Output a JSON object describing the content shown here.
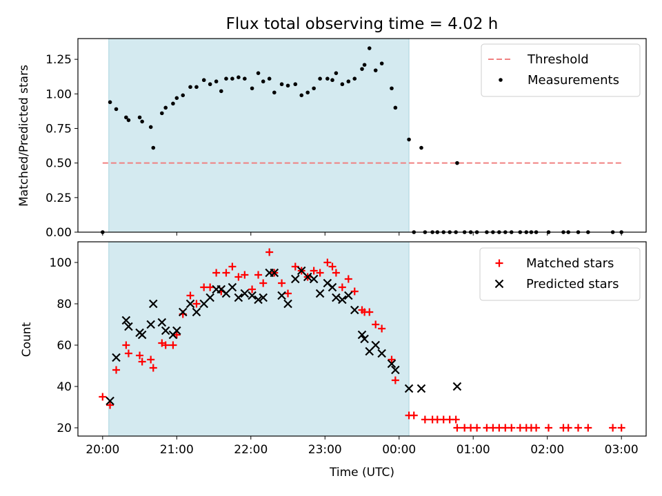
{
  "chart_data": [
    {
      "type": "scatter",
      "title": "Flux total observing time = 4.02 h",
      "xlabel": "",
      "ylabel": "Matched/Predicted stars",
      "ylim": [
        0,
        1.4
      ],
      "yticks": [
        "0.00",
        "0.25",
        "0.50",
        "0.75",
        "1.00",
        "1.25"
      ],
      "ytick_values": [
        0,
        0.25,
        0.5,
        0.75,
        1.0,
        1.25
      ],
      "shaded_span": [
        "20:05",
        "00:08"
      ],
      "threshold": {
        "name": "Threshold",
        "value": 0.5,
        "x_range": [
          "20:00",
          "03:00"
        ],
        "color": "#f08080"
      },
      "legend_position": "upper right",
      "series": [
        {
          "name": "Measurements",
          "marker": "dot",
          "color": "#000000",
          "points": [
            [
              "20:00",
              0.0
            ],
            [
              "20:06",
              0.94
            ],
            [
              "20:11",
              0.89
            ],
            [
              "20:19",
              0.83
            ],
            [
              "20:21",
              0.81
            ],
            [
              "20:30",
              0.83
            ],
            [
              "20:32",
              0.8
            ],
            [
              "20:39",
              0.76
            ],
            [
              "20:41",
              0.61
            ],
            [
              "20:48",
              0.86
            ],
            [
              "20:51",
              0.9
            ],
            [
              "20:57",
              0.93
            ],
            [
              "21:00",
              0.97
            ],
            [
              "21:05",
              0.99
            ],
            [
              "21:11",
              1.05
            ],
            [
              "21:16",
              1.05
            ],
            [
              "21:22",
              1.1
            ],
            [
              "21:27",
              1.07
            ],
            [
              "21:32",
              1.09
            ],
            [
              "21:36",
              1.02
            ],
            [
              "21:40",
              1.11
            ],
            [
              "21:45",
              1.11
            ],
            [
              "21:50",
              1.12
            ],
            [
              "21:55",
              1.11
            ],
            [
              "22:01",
              1.04
            ],
            [
              "22:06",
              1.15
            ],
            [
              "22:10",
              1.09
            ],
            [
              "22:15",
              1.11
            ],
            [
              "22:19",
              1.01
            ],
            [
              "22:25",
              1.07
            ],
            [
              "22:30",
              1.06
            ],
            [
              "22:36",
              1.07
            ],
            [
              "22:41",
              0.99
            ],
            [
              "22:46",
              1.01
            ],
            [
              "22:51",
              1.04
            ],
            [
              "22:56",
              1.11
            ],
            [
              "23:02",
              1.11
            ],
            [
              "23:06",
              1.1
            ],
            [
              "23:09",
              1.15
            ],
            [
              "23:14",
              1.07
            ],
            [
              "23:19",
              1.09
            ],
            [
              "23:24",
              1.11
            ],
            [
              "23:30",
              1.18
            ],
            [
              "23:32",
              1.21
            ],
            [
              "23:36",
              1.33
            ],
            [
              "23:41",
              1.17
            ],
            [
              "23:46",
              1.22
            ],
            [
              "23:54",
              1.04
            ],
            [
              "23:57",
              0.9
            ],
            [
              "00:08",
              0.67
            ],
            [
              "00:18",
              0.61
            ],
            [
              "00:12",
              0.0
            ],
            [
              "00:21",
              0.0
            ],
            [
              "00:27",
              0.0
            ],
            [
              "00:31",
              0.0
            ],
            [
              "00:36",
              0.0
            ],
            [
              "00:41",
              0.0
            ],
            [
              "00:46",
              0.0
            ],
            [
              "00:47",
              0.5
            ],
            [
              "00:53",
              0.0
            ],
            [
              "00:58",
              0.0
            ],
            [
              "01:03",
              0.0
            ],
            [
              "01:11",
              0.0
            ],
            [
              "01:16",
              0.0
            ],
            [
              "01:21",
              0.0
            ],
            [
              "01:26",
              0.0
            ],
            [
              "01:31",
              0.0
            ],
            [
              "01:38",
              0.0
            ],
            [
              "01:43",
              0.0
            ],
            [
              "01:47",
              0.0
            ],
            [
              "01:51",
              0.0
            ],
            [
              "02:01",
              0.0
            ],
            [
              "02:13",
              0.0
            ],
            [
              "02:17",
              0.0
            ],
            [
              "02:25",
              0.0
            ],
            [
              "02:33",
              0.0
            ],
            [
              "02:53",
              0.0
            ],
            [
              "03:00",
              0.0
            ]
          ]
        }
      ]
    },
    {
      "type": "scatter",
      "title": "",
      "xlabel": "Time (UTC)",
      "ylabel": "Count",
      "ylim": [
        16,
        110
      ],
      "yticks": [
        "20",
        "40",
        "60",
        "80",
        "100"
      ],
      "ytick_values": [
        20,
        40,
        60,
        80,
        100
      ],
      "xticks": [
        "20:00",
        "21:00",
        "22:00",
        "23:00",
        "00:00",
        "01:00",
        "02:00",
        "03:00"
      ],
      "xlim": [
        "19:40",
        "03:20"
      ],
      "shaded_span": [
        "20:05",
        "00:08"
      ],
      "legend_position": "upper right",
      "series": [
        {
          "name": "Matched stars",
          "marker": "plus",
          "color": "#ff0000",
          "points": [
            [
              "20:00",
              35
            ],
            [
              "20:06",
              31
            ],
            [
              "20:11",
              48
            ],
            [
              "20:19",
              60
            ],
            [
              "20:21",
              56
            ],
            [
              "20:30",
              55
            ],
            [
              "20:32",
              52
            ],
            [
              "20:39",
              53
            ],
            [
              "20:41",
              49
            ],
            [
              "20:48",
              61
            ],
            [
              "20:51",
              60
            ],
            [
              "20:57",
              60
            ],
            [
              "21:00",
              65
            ],
            [
              "21:05",
              75
            ],
            [
              "21:11",
              84
            ],
            [
              "21:16",
              80
            ],
            [
              "21:22",
              88
            ],
            [
              "21:27",
              88
            ],
            [
              "21:32",
              95
            ],
            [
              "21:36",
              86
            ],
            [
              "21:40",
              95
            ],
            [
              "21:45",
              98
            ],
            [
              "21:50",
              93
            ],
            [
              "21:55",
              94
            ],
            [
              "22:01",
              87
            ],
            [
              "22:06",
              94
            ],
            [
              "22:10",
              90
            ],
            [
              "22:15",
              105
            ],
            [
              "22:19",
              95
            ],
            [
              "22:25",
              90
            ],
            [
              "22:30",
              85
            ],
            [
              "22:36",
              98
            ],
            [
              "22:41",
              96
            ],
            [
              "22:46",
              93
            ],
            [
              "22:51",
              96
            ],
            [
              "22:56",
              95
            ],
            [
              "23:02",
              100
            ],
            [
              "23:06",
              98
            ],
            [
              "23:09",
              95
            ],
            [
              "23:14",
              88
            ],
            [
              "23:19",
              92
            ],
            [
              "23:24",
              86
            ],
            [
              "23:30",
              77
            ],
            [
              "23:32",
              76
            ],
            [
              "23:36",
              76
            ],
            [
              "23:41",
              70
            ],
            [
              "23:46",
              68
            ],
            [
              "23:54",
              53
            ],
            [
              "23:57",
              43
            ],
            [
              "00:08",
              26
            ],
            [
              "00:12",
              26
            ],
            [
              "00:21",
              24
            ],
            [
              "00:27",
              24
            ],
            [
              "00:31",
              24
            ],
            [
              "00:36",
              24
            ],
            [
              "00:41",
              24
            ],
            [
              "00:46",
              24
            ],
            [
              "00:47",
              20
            ],
            [
              "00:53",
              20
            ],
            [
              "00:58",
              20
            ],
            [
              "01:03",
              20
            ],
            [
              "01:11",
              20
            ],
            [
              "01:16",
              20
            ],
            [
              "01:21",
              20
            ],
            [
              "01:26",
              20
            ],
            [
              "01:31",
              20
            ],
            [
              "01:38",
              20
            ],
            [
              "01:43",
              20
            ],
            [
              "01:47",
              20
            ],
            [
              "01:51",
              20
            ],
            [
              "02:01",
              20
            ],
            [
              "02:13",
              20
            ],
            [
              "02:17",
              20
            ],
            [
              "02:25",
              20
            ],
            [
              "02:33",
              20
            ],
            [
              "02:53",
              20
            ],
            [
              "03:00",
              20
            ]
          ]
        },
        {
          "name": "Predicted stars",
          "marker": "x",
          "color": "#000000",
          "points": [
            [
              "20:06",
              33
            ],
            [
              "20:11",
              54
            ],
            [
              "20:19",
              72
            ],
            [
              "20:21",
              69
            ],
            [
              "20:30",
              66
            ],
            [
              "20:32",
              65
            ],
            [
              "20:39",
              70
            ],
            [
              "20:41",
              80
            ],
            [
              "20:48",
              71
            ],
            [
              "20:51",
              67
            ],
            [
              "20:57",
              65
            ],
            [
              "21:00",
              67
            ],
            [
              "21:05",
              76
            ],
            [
              "21:11",
              80
            ],
            [
              "21:16",
              76
            ],
            [
              "21:22",
              80
            ],
            [
              "21:27",
              83
            ],
            [
              "21:32",
              87
            ],
            [
              "21:36",
              87
            ],
            [
              "21:40",
              85
            ],
            [
              "21:45",
              88
            ],
            [
              "21:50",
              83
            ],
            [
              "21:55",
              85
            ],
            [
              "22:01",
              84
            ],
            [
              "22:06",
              82
            ],
            [
              "22:10",
              83
            ],
            [
              "22:15",
              95
            ],
            [
              "22:19",
              95
            ],
            [
              "22:25",
              84
            ],
            [
              "22:30",
              80
            ],
            [
              "22:36",
              92
            ],
            [
              "22:41",
              96
            ],
            [
              "22:46",
              93
            ],
            [
              "22:51",
              92
            ],
            [
              "22:56",
              85
            ],
            [
              "23:02",
              90
            ],
            [
              "23:06",
              88
            ],
            [
              "23:09",
              83
            ],
            [
              "23:14",
              82
            ],
            [
              "23:19",
              84
            ],
            [
              "23:24",
              77
            ],
            [
              "23:30",
              65
            ],
            [
              "23:32",
              63
            ],
            [
              "23:36",
              57
            ],
            [
              "23:41",
              60
            ],
            [
              "23:46",
              56
            ],
            [
              "23:54",
              51
            ],
            [
              "23:57",
              48
            ],
            [
              "00:08",
              39
            ],
            [
              "00:18",
              39
            ],
            [
              "00:47",
              40
            ]
          ]
        }
      ]
    }
  ]
}
